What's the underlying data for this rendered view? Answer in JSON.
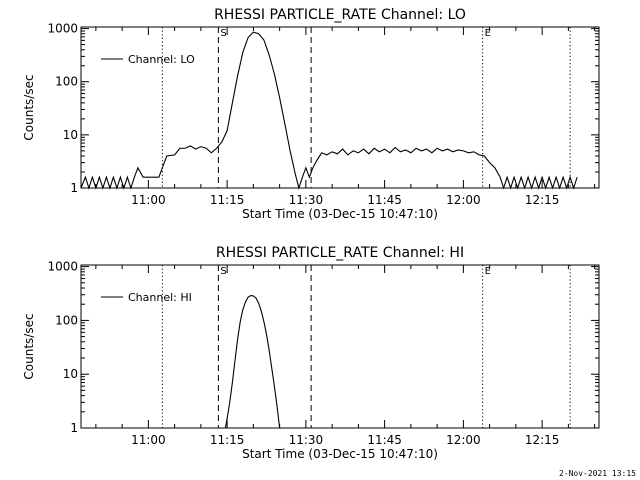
{
  "footer_stamp": "2-Nov-2021 13:15",
  "chart_data": [
    {
      "type": "line",
      "title": "RHESSI PARTICLE_RATE Channel: LO",
      "xlabel": "Start Time (03-Dec-15 10:47:10)",
      "ylabel": "Counts/sec",
      "yscale": "log",
      "ylim": [
        1,
        1000
      ],
      "xlim": [
        "10:47:10",
        "12:25:50"
      ],
      "x_ticks": [
        "11:00",
        "11:15",
        "11:30",
        "11:45",
        "12:00",
        "12:15"
      ],
      "y_ticks": [
        "1",
        "10",
        "100",
        "1000"
      ],
      "legend": {
        "position": "top-left",
        "entries": [
          "Channel: LO"
        ]
      },
      "markers": [
        {
          "time": "11:02:40",
          "style": "dotted",
          "label": ""
        },
        {
          "time": "11:13:20",
          "style": "dashed",
          "label": "S"
        },
        {
          "time": "11:31:00",
          "style": "dashed",
          "label": ""
        },
        {
          "time": "12:03:40",
          "style": "dotted",
          "label": "E"
        },
        {
          "time": "12:20:20",
          "style": "dotted",
          "label": ""
        }
      ],
      "series": [
        {
          "name": "Channel: LO",
          "points": [
            [
              "10:47:10",
              1
            ],
            [
              "10:48:00",
              1.6
            ],
            [
              "10:48:40",
              1
            ],
            [
              "10:49:20",
              1.6
            ],
            [
              "10:50:00",
              1
            ],
            [
              "10:50:40",
              1.6
            ],
            [
              "10:51:20",
              1
            ],
            [
              "10:52:00",
              1.6
            ],
            [
              "10:52:40",
              1
            ],
            [
              "10:53:20",
              1.6
            ],
            [
              "10:54:00",
              1
            ],
            [
              "10:54:40",
              1.6
            ],
            [
              "10:55:20",
              1
            ],
            [
              "10:56:00",
              1.6
            ],
            [
              "10:56:40",
              1
            ],
            [
              "10:57:20",
              1.6
            ],
            [
              "10:58:00",
              2.4
            ],
            [
              "10:59:00",
              1.6
            ],
            [
              "11:00:00",
              1.6
            ],
            [
              "11:01:00",
              1.6
            ],
            [
              "11:02:00",
              1.6
            ],
            [
              "11:03:30",
              4
            ],
            [
              "11:05:00",
              4.2
            ],
            [
              "11:06:00",
              5.6
            ],
            [
              "11:07:00",
              5.6
            ],
            [
              "11:08:00",
              6.2
            ],
            [
              "11:09:00",
              5.4
            ],
            [
              "11:10:00",
              6
            ],
            [
              "11:11:00",
              5.6
            ],
            [
              "11:12:00",
              4.6
            ],
            [
              "11:13:00",
              5.6
            ],
            [
              "11:14:00",
              7.4
            ],
            [
              "11:15:00",
              12
            ],
            [
              "11:16:00",
              40
            ],
            [
              "11:17:00",
              130
            ],
            [
              "11:18:00",
              360
            ],
            [
              "11:19:00",
              680
            ],
            [
              "11:20:00",
              860
            ],
            [
              "11:21:00",
              800
            ],
            [
              "11:22:00",
              610
            ],
            [
              "11:23:00",
              320
            ],
            [
              "11:24:00",
              140
            ],
            [
              "11:25:00",
              50
            ],
            [
              "11:26:00",
              16
            ],
            [
              "11:27:00",
              5
            ],
            [
              "11:28:00",
              1.8
            ],
            [
              "11:28:40",
              1
            ],
            [
              "11:29:20",
              1.6
            ],
            [
              "11:30:00",
              2.4
            ],
            [
              "11:30:40",
              1.6
            ],
            [
              "11:31:20",
              2.4
            ],
            [
              "11:32:00",
              3.2
            ],
            [
              "11:33:00",
              4.6
            ],
            [
              "11:34:00",
              4.2
            ],
            [
              "11:35:00",
              4.8
            ],
            [
              "11:36:00",
              4.4
            ],
            [
              "11:37:00",
              5.4
            ],
            [
              "11:38:00",
              4.2
            ],
            [
              "11:39:00",
              5
            ],
            [
              "11:40:00",
              4.6
            ],
            [
              "11:41:00",
              5.4
            ],
            [
              "11:42:00",
              4.4
            ],
            [
              "11:43:00",
              5.6
            ],
            [
              "11:44:00",
              4.8
            ],
            [
              "11:45:00",
              5.4
            ],
            [
              "11:46:00",
              4.6
            ],
            [
              "11:47:00",
              5.8
            ],
            [
              "11:48:00",
              4.8
            ],
            [
              "11:49:00",
              5.2
            ],
            [
              "11:50:00",
              4.6
            ],
            [
              "11:51:00",
              5.6
            ],
            [
              "11:52:00",
              5
            ],
            [
              "11:53:00",
              5.4
            ],
            [
              "11:54:00",
              4.6
            ],
            [
              "11:55:00",
              5.6
            ],
            [
              "11:56:00",
              5
            ],
            [
              "11:57:00",
              5.4
            ],
            [
              "11:58:00",
              4.8
            ],
            [
              "11:59:00",
              5.2
            ],
            [
              "12:00:00",
              5
            ],
            [
              "12:01:00",
              4.6
            ],
            [
              "12:02:00",
              4.8
            ],
            [
              "12:03:00",
              4.2
            ],
            [
              "12:04:00",
              4
            ],
            [
              "12:05:00",
              3
            ],
            [
              "12:06:00",
              2.4
            ],
            [
              "12:07:00",
              1.6
            ],
            [
              "12:07:40",
              1
            ],
            [
              "12:08:20",
              1.6
            ],
            [
              "12:09:00",
              1
            ],
            [
              "12:09:40",
              1.6
            ],
            [
              "12:10:20",
              1
            ],
            [
              "12:11:00",
              1.6
            ],
            [
              "12:11:40",
              1
            ],
            [
              "12:12:20",
              1.6
            ],
            [
              "12:13:00",
              1
            ],
            [
              "12:13:40",
              1.6
            ],
            [
              "12:14:20",
              1
            ],
            [
              "12:15:00",
              1.6
            ],
            [
              "12:15:40",
              1
            ],
            [
              "12:16:20",
              1.6
            ],
            [
              "12:17:00",
              1
            ],
            [
              "12:17:40",
              1.6
            ],
            [
              "12:18:20",
              1
            ],
            [
              "12:19:00",
              1.6
            ],
            [
              "12:19:40",
              1
            ],
            [
              "12:20:20",
              1.6
            ],
            [
              "12:21:00",
              1
            ],
            [
              "12:21:40",
              1.6
            ]
          ]
        }
      ]
    },
    {
      "type": "line",
      "title": "RHESSI PARTICLE_RATE Channel: HI",
      "xlabel": "Start Time (03-Dec-15 10:47:10)",
      "ylabel": "Counts/sec",
      "yscale": "log",
      "ylim": [
        1,
        1000
      ],
      "xlim": [
        "10:47:10",
        "12:25:50"
      ],
      "x_ticks": [
        "11:00",
        "11:15",
        "11:30",
        "11:45",
        "12:00",
        "12:15"
      ],
      "y_ticks": [
        "1",
        "10",
        "100",
        "1000"
      ],
      "legend": {
        "position": "top-left",
        "entries": [
          "Channel: HI"
        ]
      },
      "markers": [
        {
          "time": "11:02:40",
          "style": "dotted",
          "label": ""
        },
        {
          "time": "11:13:20",
          "style": "dashed",
          "label": "S"
        },
        {
          "time": "11:31:00",
          "style": "dashed",
          "label": ""
        },
        {
          "time": "12:03:40",
          "style": "dotted",
          "label": "E"
        },
        {
          "time": "12:20:20",
          "style": "dotted",
          "label": ""
        }
      ],
      "series": [
        {
          "name": "Channel: HI",
          "points": [
            [
              "11:14:40",
              1
            ],
            [
              "11:15:00",
              1.5
            ],
            [
              "11:15:30",
              3
            ],
            [
              "11:16:00",
              7
            ],
            [
              "11:16:30",
              18
            ],
            [
              "11:17:00",
              45
            ],
            [
              "11:17:30",
              95
            ],
            [
              "11:18:00",
              160
            ],
            [
              "11:18:30",
              220
            ],
            [
              "11:19:00",
              270
            ],
            [
              "11:19:30",
              290
            ],
            [
              "11:20:00",
              285
            ],
            [
              "11:20:30",
              260
            ],
            [
              "11:21:00",
              210
            ],
            [
              "11:21:30",
              150
            ],
            [
              "11:22:00",
              95
            ],
            [
              "11:22:30",
              55
            ],
            [
              "11:23:00",
              28
            ],
            [
              "11:23:30",
              13
            ],
            [
              "11:24:00",
              6
            ],
            [
              "11:24:30",
              2.6
            ],
            [
              "11:25:00",
              1
            ]
          ]
        }
      ]
    }
  ]
}
